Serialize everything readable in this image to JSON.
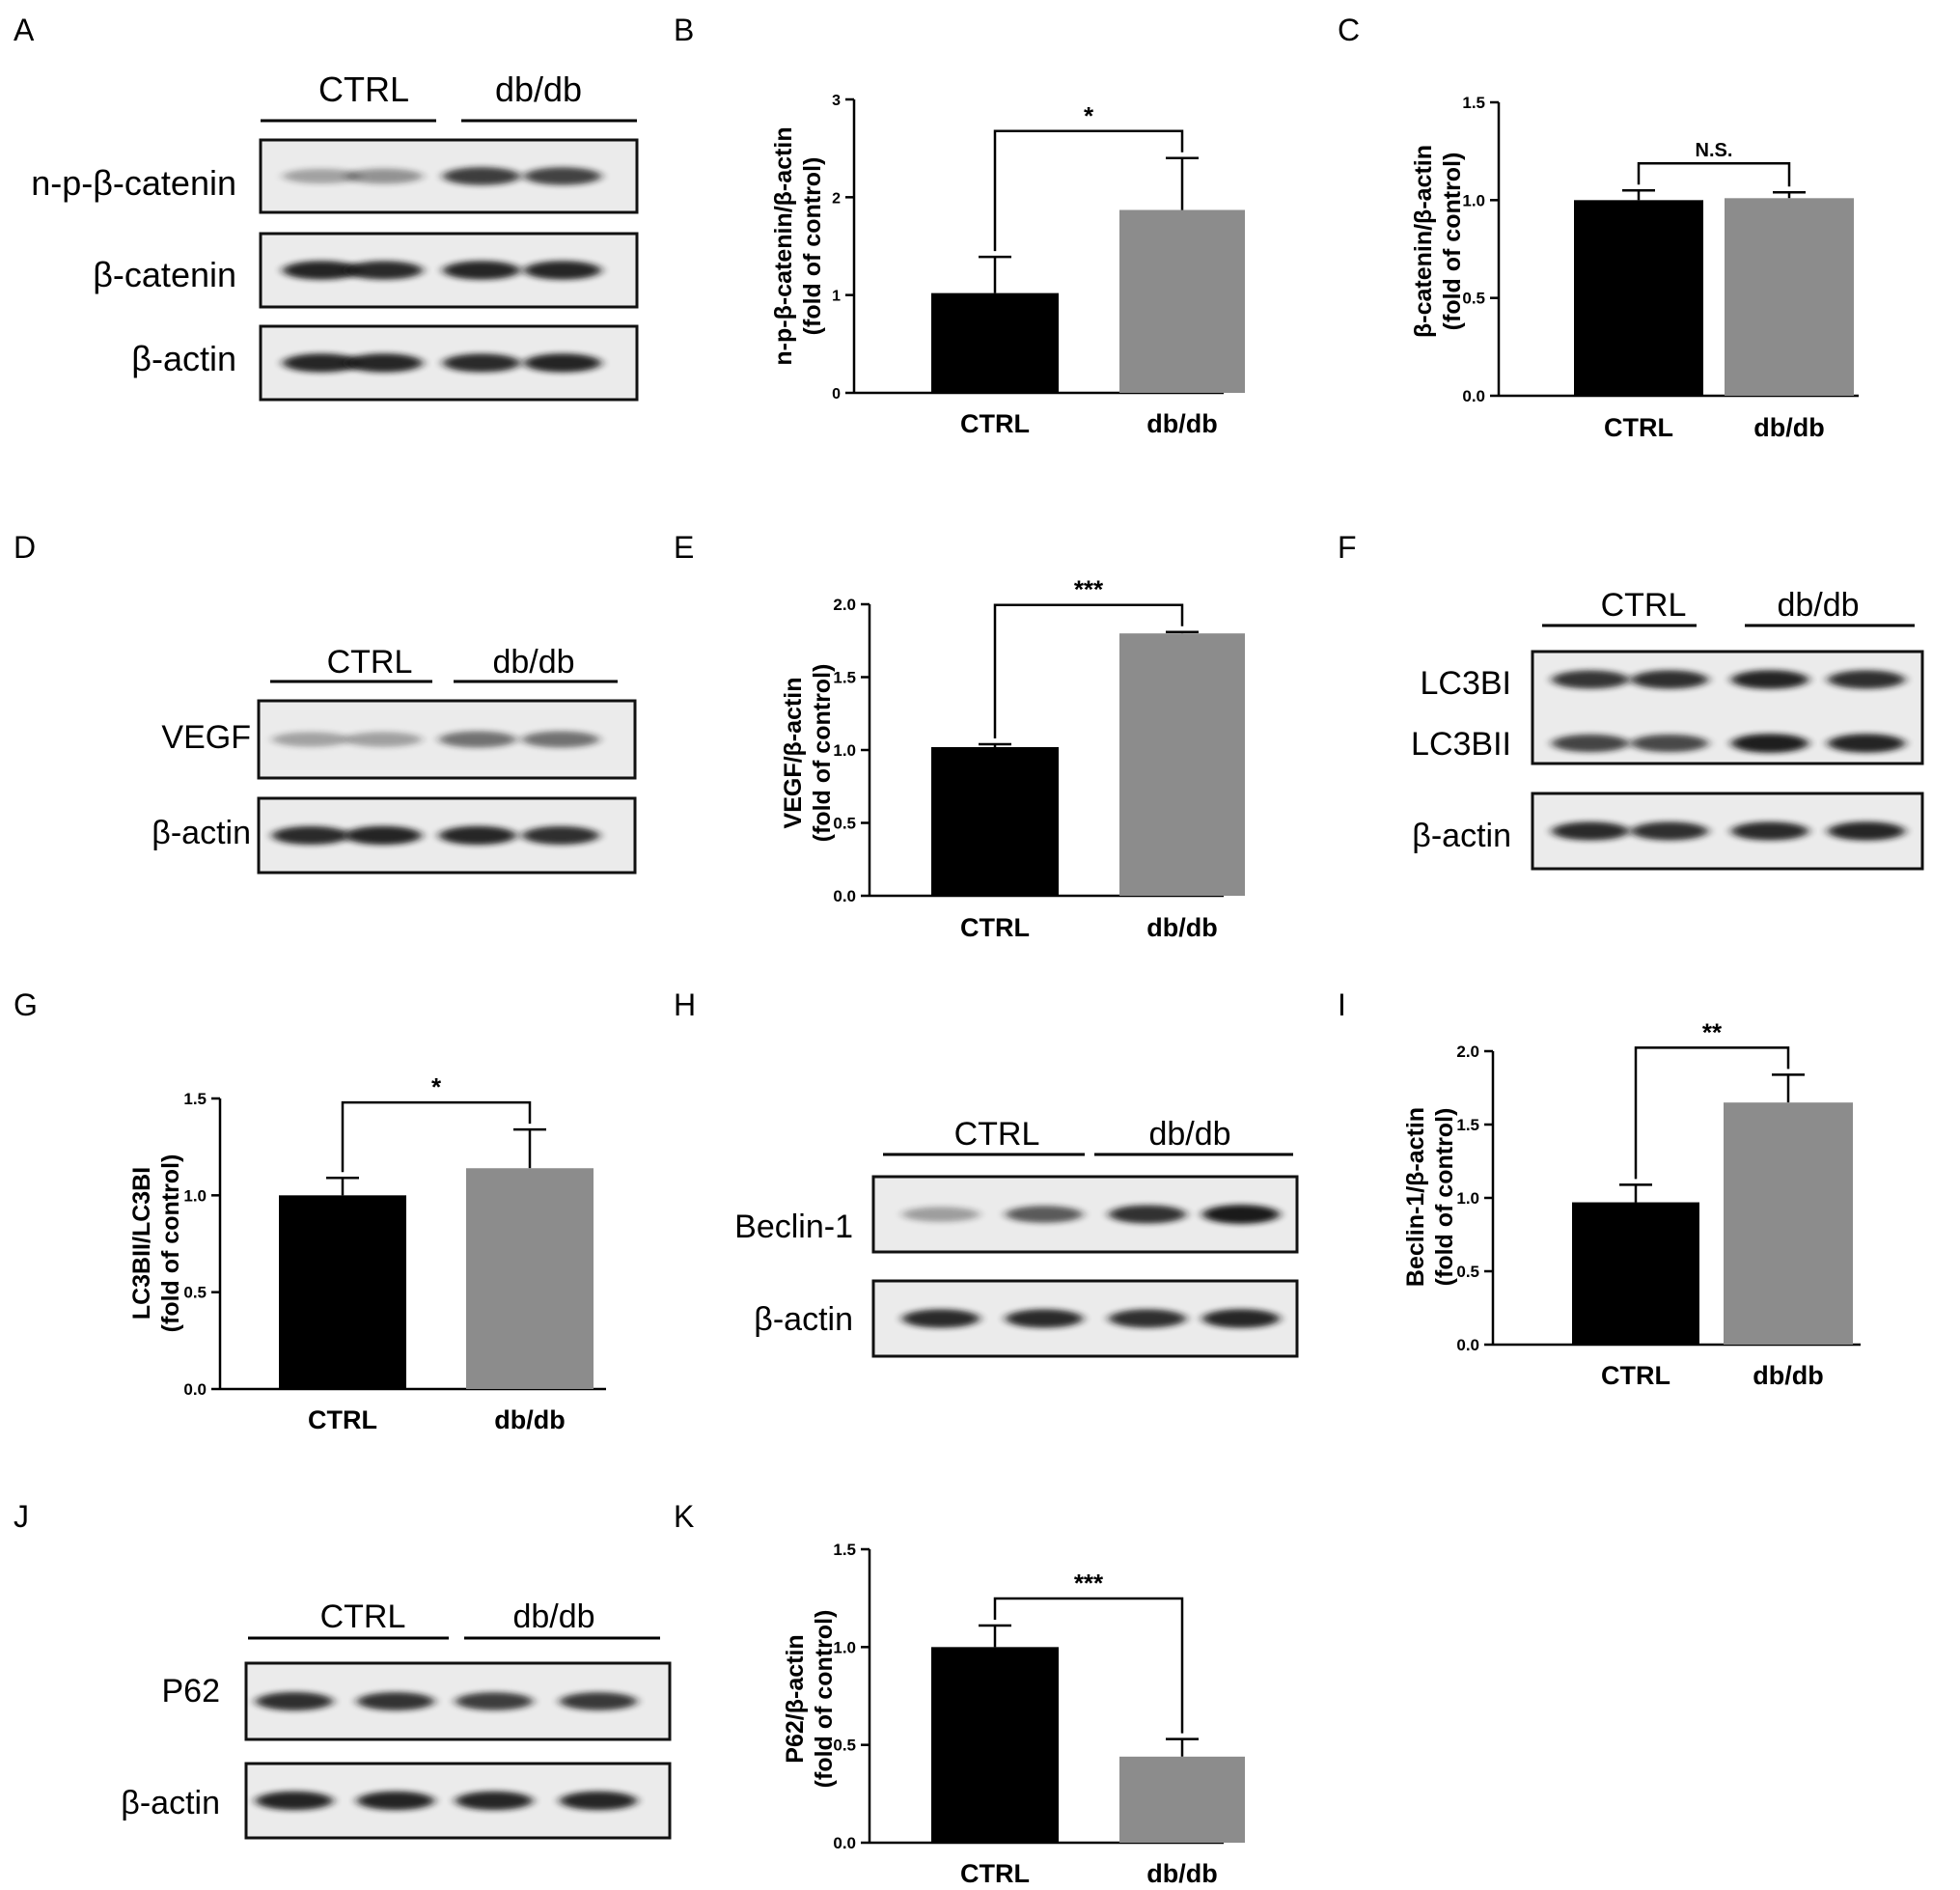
{
  "figure": {
    "panels": [
      {
        "letter": "A",
        "kind": "blot",
        "groups": [
          "CTRL",
          "db/db"
        ],
        "rows": [
          {
            "label": "n-p-β-catenin",
            "bands": [
              0.22,
              0.3,
              0.78,
              0.75
            ]
          },
          {
            "label": "β-catenin",
            "bands": [
              0.92,
              0.88,
              0.9,
              0.9
            ]
          },
          {
            "label": "β-actin",
            "bands": [
              0.9,
              0.9,
              0.88,
              0.92
            ]
          }
        ]
      },
      {
        "letter": "B",
        "kind": "chart",
        "chart_ref": 0
      },
      {
        "letter": "C",
        "kind": "chart",
        "chart_ref": 1
      },
      {
        "letter": "D",
        "kind": "blot",
        "groups": [
          "CTRL",
          "db/db"
        ],
        "rows": [
          {
            "label": "VEGF",
            "bands": [
              0.22,
              0.24,
              0.5,
              0.5
            ]
          },
          {
            "label": "β-actin",
            "bands": [
              0.88,
              0.92,
              0.9,
              0.86
            ]
          }
        ]
      },
      {
        "letter": "E",
        "kind": "chart",
        "chart_ref": 2
      },
      {
        "letter": "F",
        "kind": "blot",
        "groups": [
          "CTRL",
          "db/db"
        ],
        "rows": [
          {
            "label": "LC3BI",
            "label2": "LC3BII",
            "bands": [
              0.82,
              0.86,
              0.92,
              0.86
            ],
            "bands2": [
              0.74,
              0.72,
              0.95,
              0.92
            ]
          },
          {
            "label": "β-actin",
            "bands": [
              0.88,
              0.86,
              0.88,
              0.9
            ]
          }
        ]
      },
      {
        "letter": "G",
        "kind": "chart",
        "chart_ref": 3
      },
      {
        "letter": "H",
        "kind": "blot",
        "groups": [
          "CTRL",
          "db/db"
        ],
        "rows": [
          {
            "label": "Beclin-1",
            "bands": [
              0.25,
              0.62,
              0.85,
              0.98
            ]
          },
          {
            "label": "β-actin",
            "bands": [
              0.88,
              0.88,
              0.86,
              0.9
            ]
          }
        ]
      },
      {
        "letter": "I",
        "kind": "chart",
        "chart_ref": 4
      },
      {
        "letter": "J",
        "kind": "blot",
        "groups": [
          "CTRL",
          "db/db"
        ],
        "rows": [
          {
            "label": "P62",
            "bands": [
              0.86,
              0.84,
              0.78,
              0.8
            ]
          },
          {
            "label": "β-actin",
            "bands": [
              0.92,
              0.92,
              0.9,
              0.9
            ]
          }
        ]
      },
      {
        "letter": "K",
        "kind": "chart",
        "chart_ref": 5
      }
    ]
  },
  "colors": {
    "ctrl_bar": "#000000",
    "dbdb_bar": "#8c8c8c",
    "axis": "#000000",
    "blot_bg": "#ebebeb",
    "band": "#141414"
  },
  "chart_data": [
    {
      "type": "bar",
      "panel": "B",
      "categories": [
        "CTRL",
        "db/db"
      ],
      "values": [
        1.02,
        1.87
      ],
      "errors": [
        0.37,
        0.53
      ],
      "ylabel_lines": [
        "n-p-β-catenin/β-actin",
        "(fold of control)"
      ],
      "ylim": [
        0,
        3
      ],
      "yticks": [
        "0",
        "1",
        "2",
        "3"
      ],
      "significance": "*"
    },
    {
      "type": "bar",
      "panel": "C",
      "categories": [
        "CTRL",
        "db/db"
      ],
      "values": [
        1.0,
        1.01
      ],
      "errors": [
        0.05,
        0.03
      ],
      "ylabel_lines": [
        "β-catenin/β-actin",
        "(fold of control)"
      ],
      "ylim": [
        0,
        1.5
      ],
      "yticks": [
        "0.0",
        "0.5",
        "1.0",
        "1.5"
      ],
      "significance": "N.S."
    },
    {
      "type": "bar",
      "panel": "E",
      "categories": [
        "CTRL",
        "db/db"
      ],
      "values": [
        1.02,
        1.8
      ],
      "errors": [
        0.02,
        0.01
      ],
      "ylabel_lines": [
        "VEGF/β-actin",
        "(fold of control)"
      ],
      "ylim": [
        0,
        2.0
      ],
      "yticks": [
        "0.0",
        "0.5",
        "1.0",
        "1.5",
        "2.0"
      ],
      "significance": "***"
    },
    {
      "type": "bar",
      "panel": "G",
      "categories": [
        "CTRL",
        "db/db"
      ],
      "values": [
        1.0,
        1.14
      ],
      "errors": [
        0.09,
        0.2
      ],
      "ylabel_lines": [
        "LC3BII/LC3BI",
        "(fold of control)"
      ],
      "ylim": [
        0,
        1.5
      ],
      "yticks": [
        "0.0",
        "0.5",
        "1.0",
        "1.5"
      ],
      "significance": "*"
    },
    {
      "type": "bar",
      "panel": "I",
      "categories": [
        "CTRL",
        "db/db"
      ],
      "values": [
        0.97,
        1.65
      ],
      "errors": [
        0.12,
        0.19
      ],
      "ylabel_lines": [
        "Beclin-1/β-actin",
        "(fold of control)"
      ],
      "ylim": [
        0,
        2.0
      ],
      "yticks": [
        "0.0",
        "0.5",
        "1.0",
        "1.5",
        "2.0"
      ],
      "significance": "**"
    },
    {
      "type": "bar",
      "panel": "K",
      "categories": [
        "CTRL",
        "db/db"
      ],
      "values": [
        1.0,
        0.44
      ],
      "errors": [
        0.11,
        0.09
      ],
      "ylabel_lines": [
        "P62/β-actin",
        "(fold of control)"
      ],
      "ylim": [
        0,
        1.5
      ],
      "yticks": [
        "0.0",
        "0.5",
        "1.0",
        "1.5"
      ],
      "significance": "***"
    }
  ]
}
